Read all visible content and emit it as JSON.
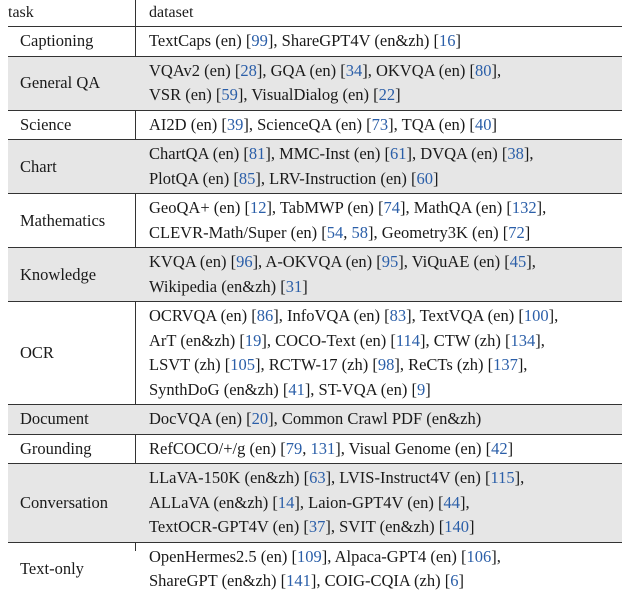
{
  "header": {
    "task": "task",
    "dataset": "dataset"
  },
  "rows": [
    {
      "task": "Captioning",
      "shaded": false,
      "lines": [
        [
          {
            "t": "TextCaps (en) ["
          },
          {
            "c": "99"
          },
          {
            "t": "], ShareGPT4V (en&zh) ["
          },
          {
            "c": "16"
          },
          {
            "t": "]"
          }
        ]
      ]
    },
    {
      "task": "General QA",
      "shaded": true,
      "lines": [
        [
          {
            "t": "VQAv2 (en) ["
          },
          {
            "c": "28"
          },
          {
            "t": "], GQA (en) ["
          },
          {
            "c": "34"
          },
          {
            "t": "], OKVQA (en) ["
          },
          {
            "c": "80"
          },
          {
            "t": "],"
          }
        ],
        [
          {
            "t": "VSR (en) ["
          },
          {
            "c": "59"
          },
          {
            "t": "], VisualDialog (en) ["
          },
          {
            "c": "22"
          },
          {
            "t": "]"
          }
        ]
      ]
    },
    {
      "task": "Science",
      "shaded": false,
      "lines": [
        [
          {
            "t": "AI2D (en) ["
          },
          {
            "c": "39"
          },
          {
            "t": "], ScienceQA (en) ["
          },
          {
            "c": "73"
          },
          {
            "t": "], TQA (en) ["
          },
          {
            "c": "40"
          },
          {
            "t": "]"
          }
        ]
      ]
    },
    {
      "task": "Chart",
      "shaded": true,
      "lines": [
        [
          {
            "t": "ChartQA (en) ["
          },
          {
            "c": "81"
          },
          {
            "t": "], MMC-Inst (en) ["
          },
          {
            "c": "61"
          },
          {
            "t": "], DVQA (en) ["
          },
          {
            "c": "38"
          },
          {
            "t": "],"
          }
        ],
        [
          {
            "t": "PlotQA (en) ["
          },
          {
            "c": "85"
          },
          {
            "t": "], LRV-Instruction (en) ["
          },
          {
            "c": "60"
          },
          {
            "t": "]"
          }
        ]
      ]
    },
    {
      "task": "Mathematics",
      "shaded": false,
      "lines": [
        [
          {
            "t": "GeoQA+ (en) ["
          },
          {
            "c": "12"
          },
          {
            "t": "], TabMWP (en) ["
          },
          {
            "c": "74"
          },
          {
            "t": "], MathQA (en) ["
          },
          {
            "c": "132"
          },
          {
            "t": "],"
          }
        ],
        [
          {
            "t": "CLEVR-Math/Super (en) ["
          },
          {
            "c": "54"
          },
          {
            "t": ", "
          },
          {
            "c": "58"
          },
          {
            "t": "], Geometry3K (en) ["
          },
          {
            "c": "72"
          },
          {
            "t": "]"
          }
        ]
      ]
    },
    {
      "task": "Knowledge",
      "shaded": true,
      "lines": [
        [
          {
            "t": "KVQA (en) ["
          },
          {
            "c": "96"
          },
          {
            "t": "], A-OKVQA (en) ["
          },
          {
            "c": "95"
          },
          {
            "t": "], ViQuAE (en) ["
          },
          {
            "c": "45"
          },
          {
            "t": "],"
          }
        ],
        [
          {
            "t": "Wikipedia (en&zh) ["
          },
          {
            "c": "31"
          },
          {
            "t": "]"
          }
        ]
      ]
    },
    {
      "task": "OCR",
      "shaded": false,
      "lines": [
        [
          {
            "t": "OCRVQA (en) ["
          },
          {
            "c": "86"
          },
          {
            "t": "], InfoVQA (en) ["
          },
          {
            "c": "83"
          },
          {
            "t": "], TextVQA (en) ["
          },
          {
            "c": "100"
          },
          {
            "t": "],"
          }
        ],
        [
          {
            "t": "ArT (en&zh) ["
          },
          {
            "c": "19"
          },
          {
            "t": "], COCO-Text (en) ["
          },
          {
            "c": "114"
          },
          {
            "t": "], CTW (zh) ["
          },
          {
            "c": "134"
          },
          {
            "t": "],"
          }
        ],
        [
          {
            "t": "LSVT (zh) ["
          },
          {
            "c": "105"
          },
          {
            "t": "], RCTW-17 (zh) ["
          },
          {
            "c": "98"
          },
          {
            "t": "], ReCTs (zh) ["
          },
          {
            "c": "137"
          },
          {
            "t": "],"
          }
        ],
        [
          {
            "t": "SynthDoG (en&zh) ["
          },
          {
            "c": "41"
          },
          {
            "t": "], ST-VQA (en) ["
          },
          {
            "c": "9"
          },
          {
            "t": "]"
          }
        ]
      ]
    },
    {
      "task": "Document",
      "shaded": true,
      "lines": [
        [
          {
            "t": "DocVQA (en) ["
          },
          {
            "c": "20"
          },
          {
            "t": "], Common Crawl PDF (en&zh)"
          }
        ]
      ]
    },
    {
      "task": "Grounding",
      "shaded": false,
      "lines": [
        [
          {
            "t": "RefCOCO/+/g (en) ["
          },
          {
            "c": "79"
          },
          {
            "t": ", "
          },
          {
            "c": "131"
          },
          {
            "t": "], Visual Genome (en) ["
          },
          {
            "c": "42"
          },
          {
            "t": "]"
          }
        ]
      ]
    },
    {
      "task": "Conversation",
      "shaded": true,
      "lines": [
        [
          {
            "t": "LLaVA-150K (en&zh) ["
          },
          {
            "c": "63"
          },
          {
            "t": "], LVIS-Instruct4V (en) ["
          },
          {
            "c": "115"
          },
          {
            "t": "],"
          }
        ],
        [
          {
            "t": "ALLaVA (en&zh) ["
          },
          {
            "c": "14"
          },
          {
            "t": "], Laion-GPT4V (en) ["
          },
          {
            "c": "44"
          },
          {
            "t": "],"
          }
        ],
        [
          {
            "t": "TextOCR-GPT4V (en) ["
          },
          {
            "c": "37"
          },
          {
            "t": "], SVIT (en&zh) ["
          },
          {
            "c": "140"
          },
          {
            "t": "]"
          }
        ]
      ]
    },
    {
      "task": "Text-only",
      "shaded": false,
      "lines": [
        [
          {
            "t": "OpenHermes2.5 (en) ["
          },
          {
            "c": "109"
          },
          {
            "t": "], Alpaca-GPT4 (en) ["
          },
          {
            "c": "106"
          },
          {
            "t": "],"
          }
        ],
        [
          {
            "t": "ShareGPT (en&zh) ["
          },
          {
            "c": "141"
          },
          {
            "t": "], COIG-CQIA (zh) ["
          },
          {
            "c": "6"
          },
          {
            "t": "]"
          }
        ]
      ]
    }
  ],
  "colors": {
    "citation": "#2a5ea8",
    "shade": "#e6e6e6",
    "rule": "#333333"
  }
}
